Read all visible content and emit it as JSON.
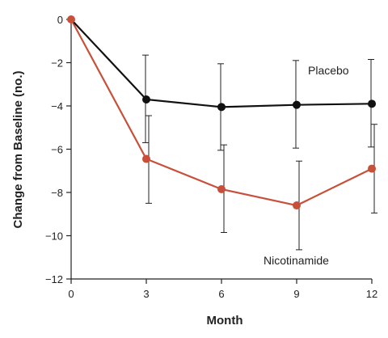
{
  "chart_data": {
    "type": "line",
    "title": "",
    "xlabel": "Month",
    "ylabel": "Change from Baseline (no.)",
    "xlim": [
      0,
      12
    ],
    "ylim": [
      -12,
      0
    ],
    "x_ticks": [
      0,
      3,
      6,
      9,
      12
    ],
    "y_ticks": [
      0,
      -2,
      -4,
      -6,
      -8,
      -10,
      -12
    ],
    "x_tick_labels": [
      "0",
      "3",
      "6",
      "9",
      "12"
    ],
    "y_tick_labels": [
      "0",
      "−2",
      "−4",
      "−6",
      "−8",
      "−10",
      "−12"
    ],
    "grid": false,
    "legend": "direct labels next to lines",
    "series": [
      {
        "name": "Placebo",
        "color": "#111111",
        "x": [
          0,
          3,
          6,
          9,
          12
        ],
        "y": [
          0,
          -3.7,
          -4.05,
          -3.95,
          -3.9
        ],
        "error_low": [
          null,
          -5.7,
          -6.05,
          -5.95,
          -5.9
        ],
        "error_high": [
          null,
          -1.65,
          -2.05,
          -1.9,
          -1.85
        ]
      },
      {
        "name": "Nicotinamide",
        "color": "#c8503a",
        "x": [
          0,
          3,
          6,
          9,
          12
        ],
        "y": [
          0,
          -6.45,
          -7.85,
          -8.6,
          -6.9
        ],
        "error_low": [
          null,
          -8.5,
          -9.85,
          -10.65,
          -8.95
        ],
        "error_high": [
          null,
          -4.45,
          -5.8,
          -6.55,
          -4.85
        ]
      }
    ]
  }
}
